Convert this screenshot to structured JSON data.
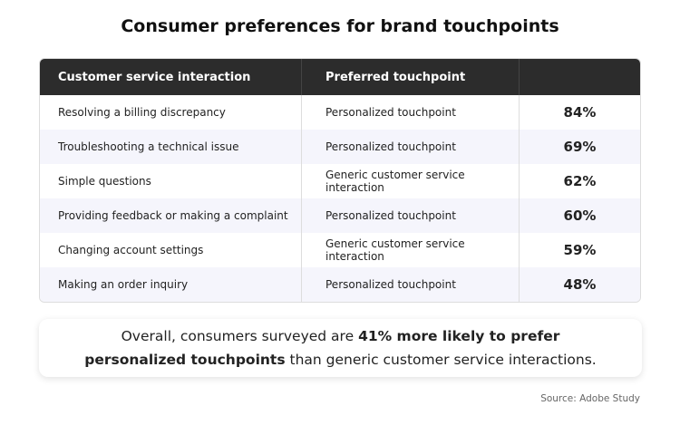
{
  "title": "Consumer preferences for brand touchpoints",
  "table": {
    "header": [
      "Customer service interaction",
      "Preferred touchpoint"
    ],
    "rows": [
      [
        "Resolving a billing discrepancy",
        "Personalized touchpoint",
        "84%"
      ],
      [
        "Troubleshooting a technical issue",
        "Personalized touchpoint",
        "69%"
      ],
      [
        "Simple questions",
        "Generic customer service interaction",
        "62%"
      ],
      [
        "Providing feedback or making a complaint",
        "Personalized touchpoint",
        "60%"
      ],
      [
        "Changing account settings",
        "Generic customer service interaction",
        "59%"
      ],
      [
        "Making an order inquiry",
        "Personalized touchpoint",
        "48%"
      ]
    ]
  },
  "summary": {
    "before": "Overall, consumers surveyed are",
    "highlight": "41% more likely to prefer personalized touchpoints",
    "after": "than generic customer service interactions."
  },
  "source": "Source: Adobe Study"
}
